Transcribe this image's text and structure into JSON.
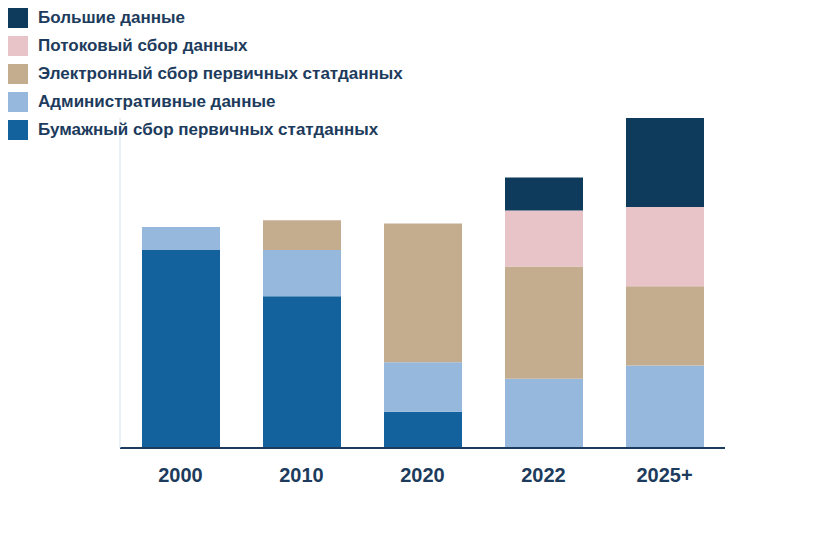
{
  "chart_data": {
    "type": "bar",
    "stacked": true,
    "legend": "top-left",
    "grid": false,
    "tick_labels": "x",
    "categories": [
      "2000",
      "2010",
      "2020",
      "2022",
      "2025+"
    ],
    "ylim": [
      0,
      100
    ],
    "series": [
      {
        "name": "Бумажный сбор первичных статданных",
        "color": "#13629e",
        "values": [
          60,
          46,
          11,
          0,
          0
        ]
      },
      {
        "name": "Административные данные",
        "color": "#96b8dc",
        "values": [
          7,
          14,
          15,
          21,
          25
        ]
      },
      {
        "name": "Электронный сбор первичных статданных",
        "color": "#c4ad8f",
        "values": [
          0,
          9,
          42,
          34,
          24
        ]
      },
      {
        "name": "Потоковый сбор данных",
        "color": "#e8c4c8",
        "values": [
          0,
          0,
          0,
          17,
          24
        ]
      },
      {
        "name": "Большие данные",
        "color": "#0e3a5c",
        "values": [
          0,
          0,
          0,
          10,
          27
        ]
      }
    ]
  }
}
